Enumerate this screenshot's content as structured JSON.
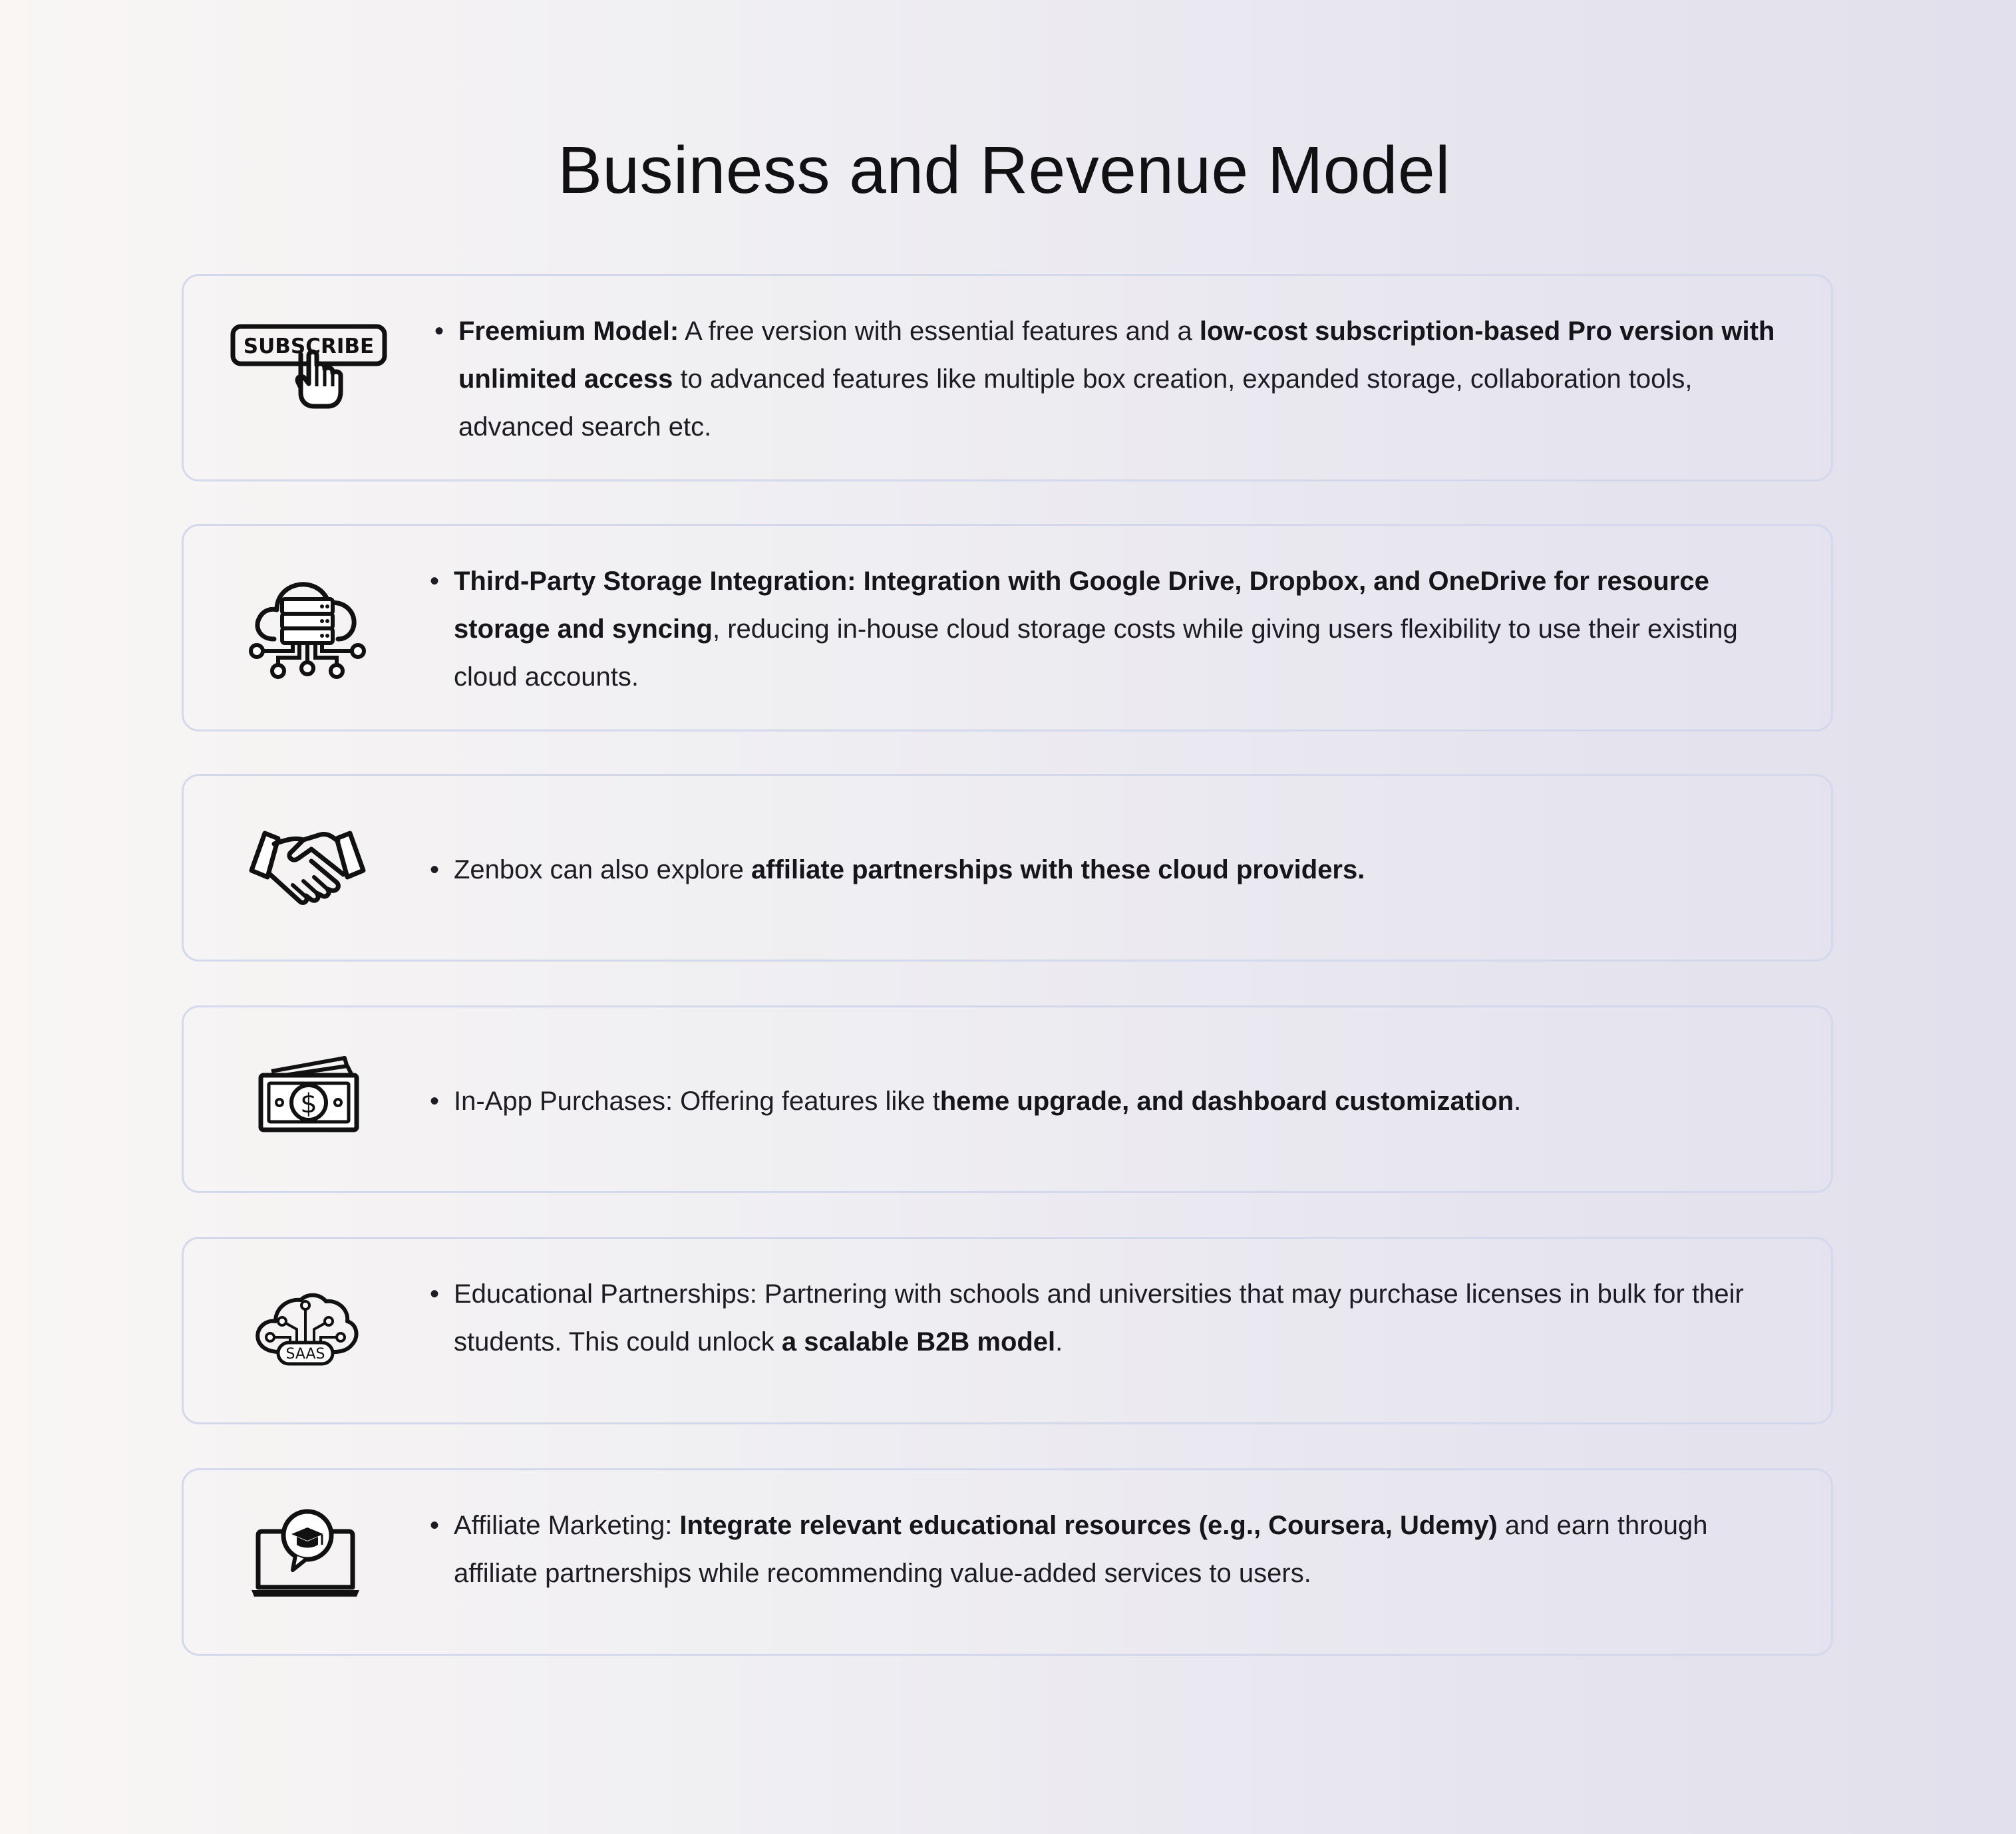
{
  "title": "Business and Revenue Model",
  "items": [
    {
      "icon": "subscribe-button-icon",
      "icon_label": "SUBSCRIBE",
      "segments": [
        {
          "text": "Freemium Model:",
          "bold": true
        },
        {
          "text": " A free version with essential features and a ",
          "bold": false
        },
        {
          "text": "low-cost subscription-based Pro version with unlimited access",
          "bold": true
        },
        {
          "text": " to advanced features like multiple box creation, expanded storage, collaboration tools,  advanced search etc.",
          "bold": false
        }
      ]
    },
    {
      "icon": "cloud-storage-icon",
      "segments": [
        {
          "text": "Third-Party Storage Integration: Integration with Google Drive, Dropbox, and OneDrive for resource storage and syncing",
          "bold": true
        },
        {
          "text": ", reducing in-house cloud storage costs while giving users flexibility to use their existing cloud accounts.",
          "bold": false
        }
      ]
    },
    {
      "icon": "handshake-icon",
      "segments": [
        {
          "text": "Zenbox can also explore ",
          "bold": false
        },
        {
          "text": "affiliate partnerships with these cloud providers.",
          "bold": true
        }
      ]
    },
    {
      "icon": "money-bill-icon",
      "segments": [
        {
          "text": "In-App Purchases: Offering features like t",
          "bold": false
        },
        {
          "text": "heme upgrade, and dashboard customization",
          "bold": true
        },
        {
          "text": ".",
          "bold": false
        }
      ]
    },
    {
      "icon": "saas-cloud-icon",
      "icon_label": "SAAS",
      "segments": [
        {
          "text": "Educational Partnerships: Partnering with schools and universities that may purchase licenses in bulk for their students. This could unlock ",
          "bold": false
        },
        {
          "text": "a scalable B2B model",
          "bold": true
        },
        {
          "text": ".",
          "bold": false
        }
      ]
    },
    {
      "icon": "online-education-laptop-icon",
      "segments": [
        {
          "text": "Affiliate Marketing: ",
          "bold": false
        },
        {
          "text": "Integrate relevant educational resources (e.g., Coursera, Udemy)",
          "bold": true
        },
        {
          "text": " and earn through affiliate partnerships while recommending value-added services to users.",
          "bold": false
        }
      ]
    }
  ]
}
